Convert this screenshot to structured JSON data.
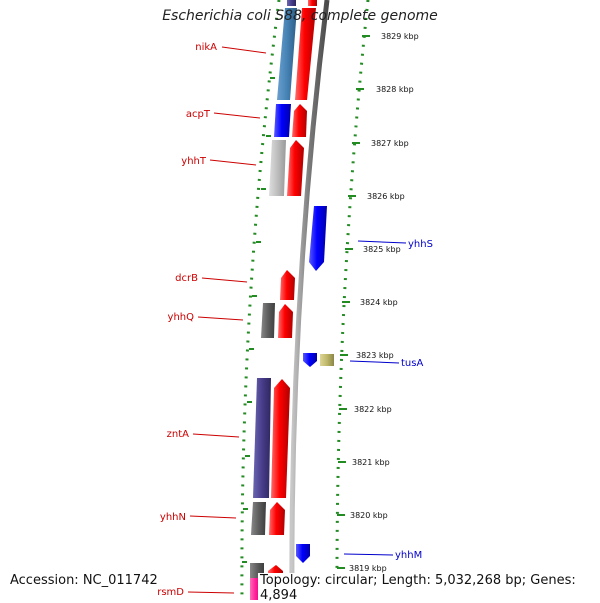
{
  "title": "Escherichia coli S88, complete genome",
  "footer": {
    "accession": "Accession: NC_011742",
    "topology": "Topology: circular; Length: 5,032,268 bp; Genes: 4,894"
  },
  "colors": {
    "forward_label": "#cc0000",
    "reverse_label": "#0000cc",
    "backbone": "#808080",
    "tick": "#228b22"
  },
  "kbp_ticks": [
    {
      "kbp": 3829,
      "label": "3829 kbp"
    },
    {
      "kbp": 3828,
      "label": "3828 kbp"
    },
    {
      "kbp": 3827,
      "label": "3827 kbp"
    },
    {
      "kbp": 3826,
      "label": "3826 kbp"
    },
    {
      "kbp": 3825,
      "label": "3825 kbp"
    },
    {
      "kbp": 3824,
      "label": "3824 kbp"
    },
    {
      "kbp": 3823,
      "label": "3823 kbp"
    },
    {
      "kbp": 3822,
      "label": "3822 kbp"
    },
    {
      "kbp": 3821,
      "label": "3821 kbp"
    },
    {
      "kbp": 3820,
      "label": "3820 kbp"
    },
    {
      "kbp": 3819,
      "label": "3819 kbp"
    }
  ],
  "genes": [
    {
      "name": "nikA",
      "strand": "forward"
    },
    {
      "name": "acpT",
      "strand": "forward"
    },
    {
      "name": "yhhT",
      "strand": "forward"
    },
    {
      "name": "yhhS",
      "strand": "reverse"
    },
    {
      "name": "dcrB",
      "strand": "forward"
    },
    {
      "name": "yhhQ",
      "strand": "forward"
    },
    {
      "name": "tusA",
      "strand": "reverse"
    },
    {
      "name": "zntA",
      "strand": "forward"
    },
    {
      "name": "yhhN",
      "strand": "forward"
    },
    {
      "name": "yhhM",
      "strand": "reverse"
    },
    {
      "name": "rsmD",
      "strand": "forward"
    }
  ]
}
